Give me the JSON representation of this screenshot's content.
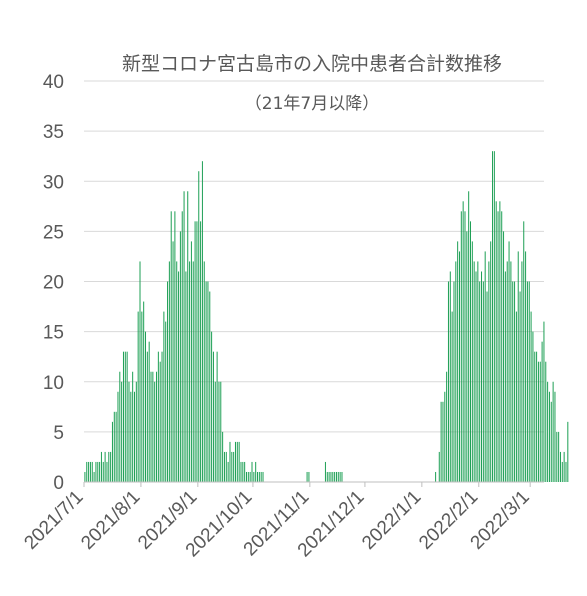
{
  "chart_data": {
    "type": "bar",
    "title": "新型コロナ宮古島市の入院中患者合計数推移",
    "subtitle": "（21年7月以降）",
    "xlabel": "",
    "ylabel": "",
    "ylim": [
      0,
      40
    ],
    "y_ticks": [
      0,
      5,
      10,
      15,
      20,
      25,
      30,
      35,
      40
    ],
    "x_tick_labels": [
      "2021/7/1",
      "2021/8/1",
      "2021/9/1",
      "2021/10/1",
      "2021/11/1",
      "2021/12/1",
      "2022/1/1",
      "2022/2/1",
      "2022/3/1"
    ],
    "x_start": "2021/7/1",
    "grid": true,
    "legend": "none",
    "bar_color": "#1fa056",
    "series": [
      {
        "values": [
          1,
          2,
          2,
          2,
          2,
          1,
          2,
          2,
          2,
          3,
          2,
          3,
          2,
          3,
          3,
          6,
          7,
          7,
          9,
          11,
          10,
          13,
          13,
          13,
          10,
          9,
          11,
          9,
          10,
          17,
          22,
          17,
          18,
          15,
          13,
          14,
          11,
          11,
          10,
          11,
          13,
          12,
          13,
          17,
          16,
          20,
          22,
          27,
          24,
          27,
          22,
          21,
          25,
          27,
          29,
          21,
          29,
          22,
          24,
          22,
          26,
          26,
          31,
          26,
          32,
          22,
          20,
          20,
          19,
          15,
          13,
          10,
          13,
          10,
          10,
          5,
          3,
          3,
          2,
          4,
          3,
          3,
          4,
          4,
          4,
          2,
          2,
          2,
          1,
          1,
          1,
          2,
          1,
          2,
          1,
          1,
          1,
          1,
          0,
          0,
          0,
          0,
          0,
          0,
          0,
          0,
          0,
          0,
          0,
          0,
          0,
          0,
          0,
          0,
          0,
          0,
          0,
          0,
          0,
          0,
          0,
          1,
          1,
          0,
          0,
          0,
          0,
          0,
          0,
          0,
          0,
          2,
          1,
          1,
          1,
          1,
          1,
          1,
          1,
          1,
          1,
          0,
          0,
          0,
          0,
          0,
          0,
          0,
          0,
          0,
          0,
          0,
          0,
          0,
          0,
          0,
          0,
          0,
          0,
          0,
          0,
          0,
          0,
          0,
          0,
          0,
          0,
          0,
          0,
          0,
          0,
          0,
          0,
          0,
          0,
          0,
          0,
          0,
          0,
          0,
          0,
          0,
          0,
          0,
          0,
          0,
          0,
          0,
          0,
          0,
          0,
          1,
          0,
          3,
          8,
          8,
          9,
          11,
          20,
          21,
          17,
          20,
          22,
          24,
          23,
          27,
          28,
          27,
          25,
          29,
          26,
          24,
          22,
          21,
          22,
          20,
          21,
          20,
          23,
          19,
          22,
          24,
          33,
          33,
          28,
          27,
          28,
          27,
          25,
          21,
          22,
          24,
          22,
          20,
          20,
          17,
          23,
          19,
          22,
          26,
          23,
          20,
          20,
          17,
          15,
          13,
          13,
          12,
          12,
          14,
          16,
          12,
          10,
          9,
          8,
          10,
          9,
          5,
          5,
          3,
          2,
          3,
          2,
          6
        ]
      }
    ]
  }
}
